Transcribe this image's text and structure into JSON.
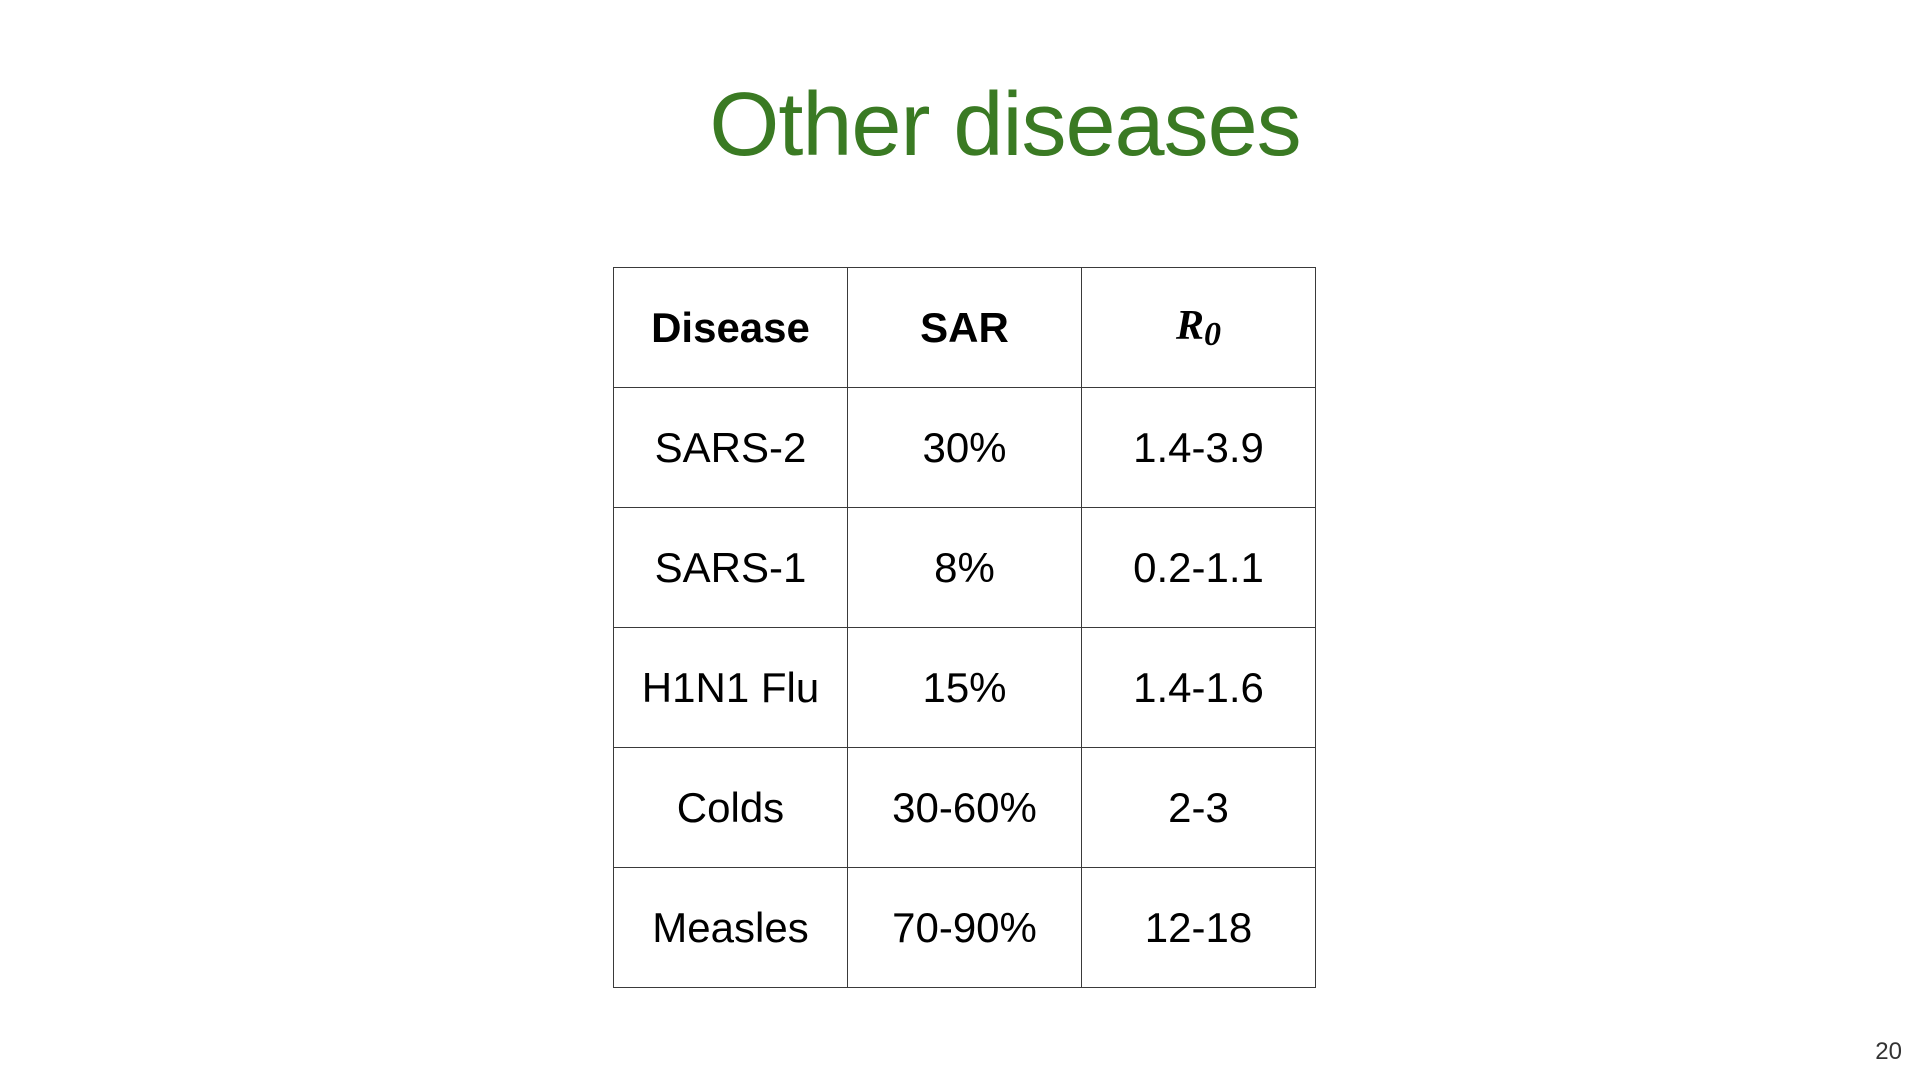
{
  "title": "Other diseases",
  "table": {
    "headers": {
      "disease": "Disease",
      "sar": "SAR",
      "r0_main": "R",
      "r0_sub": "0"
    },
    "rows": [
      {
        "disease": "SARS-2",
        "sar": "30%",
        "r0": "1.4-3.9"
      },
      {
        "disease": "SARS-1",
        "sar": "8%",
        "r0": "0.2-1.1"
      },
      {
        "disease": "H1N1 Flu",
        "sar": "15%",
        "r0": "1.4-1.6"
      },
      {
        "disease": "Colds",
        "sar": "30-60%",
        "r0": "2-3"
      },
      {
        "disease": "Measles",
        "sar": "70-90%",
        "r0": "12-18"
      }
    ]
  },
  "page_number": "20",
  "colors": {
    "title": "#3a7a23",
    "text": "#000000",
    "grid": "#3a3a3a"
  }
}
